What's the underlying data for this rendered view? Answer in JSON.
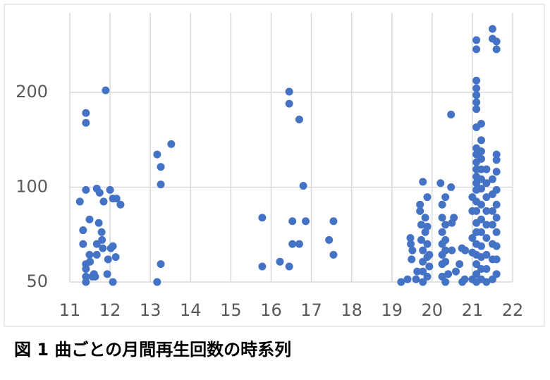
{
  "chart_data": {
    "type": "scatter",
    "title": "図 1 曲ごとの月間再生回数の時系列",
    "color": "#4472c4",
    "yscale": "log",
    "grid": true,
    "xlim": [
      11,
      22
    ],
    "xticks": [
      11,
      12,
      13,
      14,
      15,
      16,
      17,
      18,
      19,
      20,
      21,
      22
    ],
    "ylim": [
      50,
      358
    ],
    "yticks": [
      50,
      100,
      200
    ],
    "x": [
      11.25,
      11.4,
      11.33,
      11.33,
      11.4,
      11.4,
      11.4,
      11.4,
      11.4,
      11.4,
      11.49,
      11.49,
      11.5,
      11.56,
      11.6,
      11.63,
      11.67,
      11.67,
      11.72,
      11.74,
      11.79,
      11.8,
      11.84,
      11.82,
      11.89,
      11.95,
      11.93,
      12.0,
      12.02,
      12.07,
      12.07,
      12.07,
      12.14,
      12.16,
      12.26,
      11.67,
      13.17,
      13.17,
      13.26,
      13.26,
      13.26,
      13.52,
      15.78,
      15.78,
      16.22,
      16.45,
      16.45,
      16.45,
      16.53,
      16.53,
      16.7,
      16.7,
      16.8,
      16.86,
      17.44,
      17.55,
      17.55,
      19.23,
      19.39,
      19.46,
      19.47,
      19.51,
      19.49,
      19.6,
      19.63,
      19.7,
      19.7,
      19.73,
      19.77,
      19.73,
      19.77,
      19.77,
      19.77,
      19.77,
      19.83,
      19.83,
      19.88,
      19.88,
      19.88,
      19.88,
      19.88,
      19.93,
      19.93,
      20.21,
      20.25,
      20.25,
      20.25,
      20.25,
      20.25,
      20.25,
      20.25,
      20.33,
      20.33,
      20.33,
      20.33,
      20.33,
      20.33,
      20.4,
      20.47,
      20.47,
      20.49,
      20.49,
      20.54,
      20.59,
      20.68,
      20.74,
      20.75,
      20.81,
      20.82,
      21.1,
      21.1,
      21.1,
      21.1,
      21.1,
      21.1,
      21.1,
      21.1,
      21.1,
      21.1,
      21.1,
      21.1,
      21.1,
      21.1,
      21.1,
      21.1,
      21.1,
      21.1,
      21.1,
      21.1,
      21.1,
      21.1,
      21.1,
      21.1,
      21.22,
      21.22,
      21.22,
      21.22,
      21.22,
      21.22,
      21.22,
      21.22,
      21.22,
      21.22,
      21.22,
      21.22,
      21.22,
      21.22,
      21.35,
      21.35,
      21.35,
      21.35,
      21.35,
      21.35,
      21.35,
      21.35,
      21.35,
      21.5,
      21.5,
      21.5,
      21.5,
      21.5,
      21.5,
      21.5,
      21.5,
      21.5,
      21.6,
      21.6,
      21.6,
      21.6,
      21.6,
      21.6,
      21.6,
      21.6,
      21.6,
      21.6,
      21.6,
      21.6,
      21.0,
      21.0,
      21.0,
      21.0,
      21.0
    ],
    "values": [
      90,
      98,
      73,
      66,
      172,
      160,
      55,
      52,
      50,
      57,
      79,
      61,
      58,
      52,
      53,
      52,
      99,
      66,
      77,
      96,
      72,
      68,
      90,
      64,
      203,
      59,
      53,
      98,
      64,
      92,
      65,
      50,
      60,
      92,
      88,
      61,
      127,
      50,
      57,
      116,
      102,
      137,
      80,
      56,
      58,
      201,
      184,
      56,
      78,
      66,
      164,
      66,
      101,
      78,
      68,
      78,
      61,
      50,
      51,
      69,
      66,
      63,
      59,
      51,
      54,
      88,
      84,
      76,
      104,
      68,
      63,
      58,
      54,
      50,
      80,
      72,
      93,
      75,
      66,
      60,
      52,
      61,
      56,
      103,
      88,
      80,
      72,
      66,
      61,
      57,
      52,
      93,
      76,
      68,
      63,
      58,
      50,
      53,
      170,
      100,
      77,
      63,
      80,
      54,
      57,
      64,
      50,
      51,
      63,
      293,
      274,
      218,
      206,
      196,
      186,
      177,
      155,
      133,
      127,
      120,
      114,
      108,
      103,
      98,
      90,
      84,
      77,
      72,
      66,
      61,
      57,
      53,
      50,
      159,
      141,
      130,
      123,
      114,
      106,
      99,
      88,
      79,
      72,
      65,
      60,
      55,
      51,
      114,
      103,
      93,
      84,
      76,
      69,
      61,
      55,
      50,
      318,
      296,
      106,
      95,
      84,
      76,
      66,
      59,
      51,
      290,
      274,
      122,
      127,
      112,
      98,
      88,
      80,
      72,
      65,
      59,
      53,
      93,
      84,
      69,
      62,
      51
    ]
  }
}
